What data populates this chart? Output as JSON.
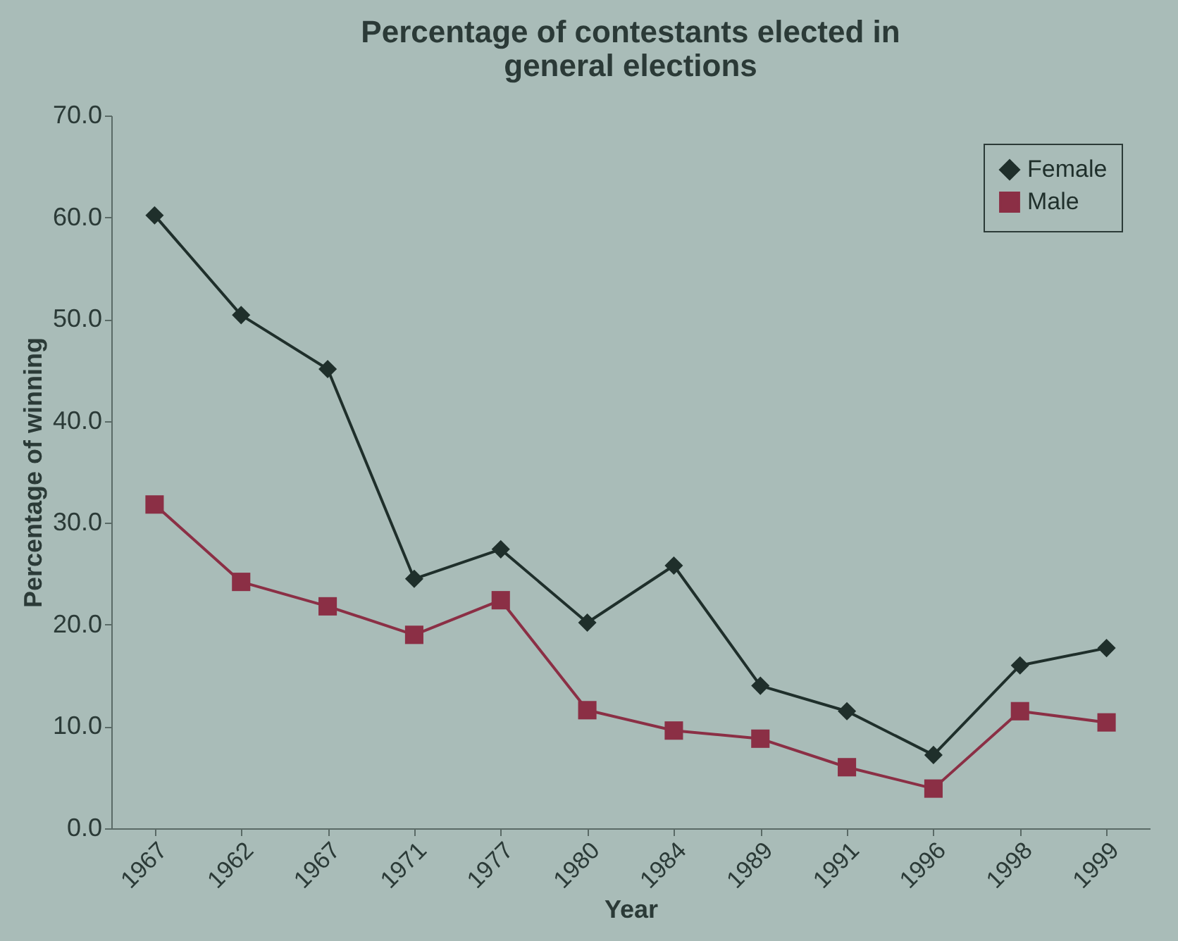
{
  "chart_data": {
    "type": "line",
    "title": [
      "Percentage of contestants elected in",
      "general elections"
    ],
    "xlabel": "Year",
    "ylabel": "Percentage of winning",
    "categories": [
      "1967",
      "1962",
      "1967",
      "1971",
      "1977",
      "1980",
      "1984",
      "1989",
      "1991",
      "1996",
      "1998",
      "1999"
    ],
    "series": [
      {
        "name": "Female",
        "color": "#1f2f2b",
        "marker": "diamond",
        "values": [
          60.2,
          50.4,
          45.1,
          24.5,
          27.4,
          20.2,
          25.8,
          14.0,
          11.5,
          7.2,
          16.0,
          17.7
        ]
      },
      {
        "name": "Male",
        "color": "#8b2f45",
        "marker": "square",
        "values": [
          31.8,
          24.2,
          21.8,
          19.0,
          22.4,
          11.6,
          9.6,
          8.8,
          6.0,
          3.9,
          11.5,
          10.4
        ]
      }
    ],
    "ylim": [
      0,
      70
    ],
    "yticks": [
      {
        "value": 0,
        "label": "0.0"
      },
      {
        "value": 10,
        "label": "10.0"
      },
      {
        "value": 20,
        "label": "20.0"
      },
      {
        "value": 30,
        "label": "30.0"
      },
      {
        "value": 40,
        "label": "40.0"
      },
      {
        "value": 50,
        "label": "50.0"
      },
      {
        "value": 60,
        "label": "60.0"
      },
      {
        "value": 70,
        "label": "70.0"
      }
    ],
    "grid": false,
    "legend": "top right",
    "line_style": "solid"
  }
}
